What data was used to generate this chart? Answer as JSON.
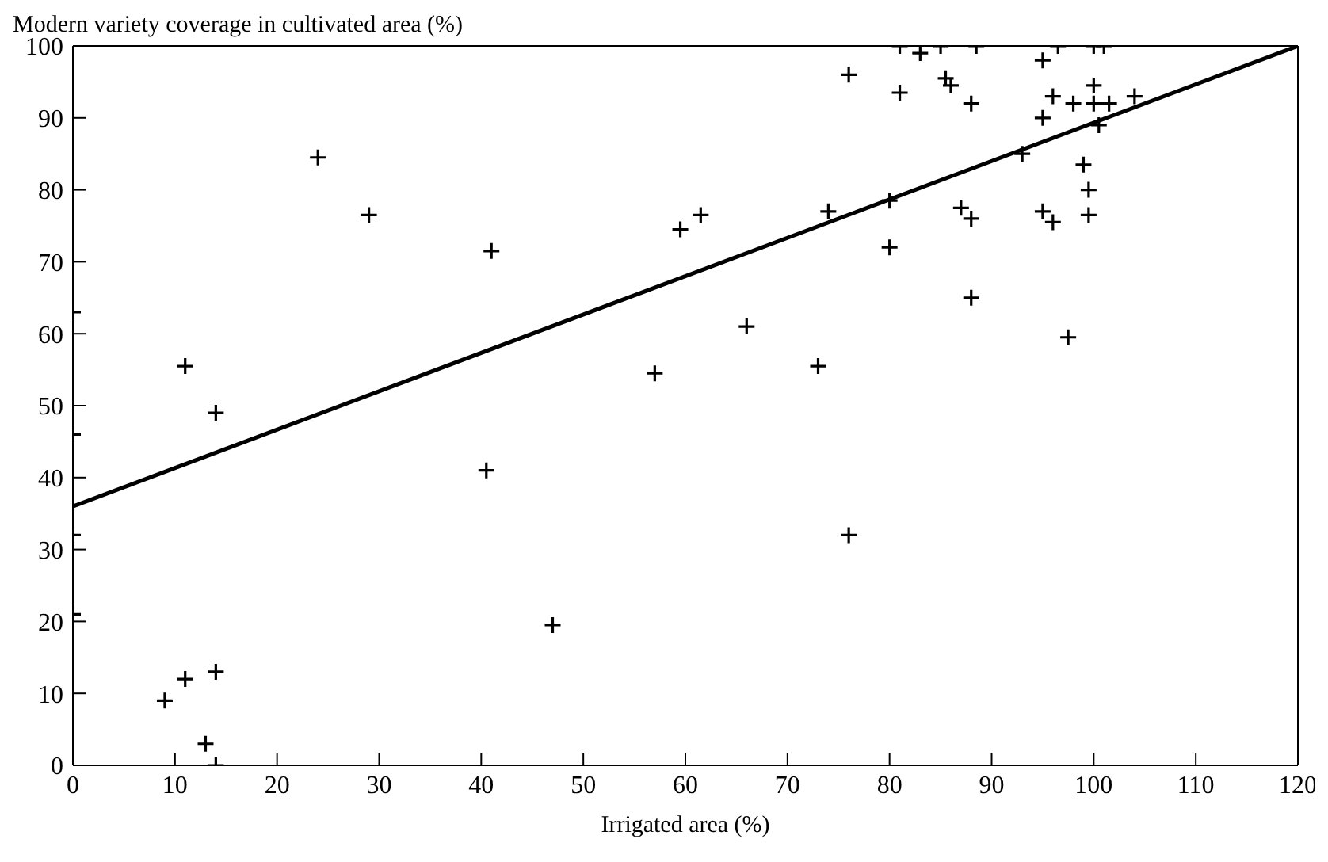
{
  "chart_data": {
    "type": "scatter",
    "ylabel": "Modern variety coverage in cultivated area (%)",
    "xlabel": "Irrigated area (%)",
    "xlim": [
      0,
      120
    ],
    "xticks": [
      0,
      10,
      20,
      30,
      40,
      50,
      60,
      70,
      80,
      90,
      100,
      110,
      120
    ],
    "ylim": [
      0,
      100
    ],
    "yticks": [
      0,
      10,
      20,
      30,
      40,
      50,
      60,
      70,
      80,
      90,
      100
    ],
    "grid": false,
    "legend": false,
    "series": [
      {
        "color": "#000000",
        "marker": "cross",
        "x": [
          0,
          0,
          0,
          0,
          9,
          11,
          13,
          14,
          14,
          11,
          14,
          24,
          29,
          41,
          40.5,
          47,
          57,
          59.5,
          61.5,
          66,
          73,
          74,
          76,
          76,
          80,
          80,
          81,
          81,
          83,
          85,
          85.5,
          86,
          87,
          88,
          88,
          88,
          88.5,
          93,
          95,
          95,
          95,
          96,
          96,
          96.5,
          97.5,
          98,
          99,
          99.5,
          99.5,
          100,
          100,
          100,
          100.5,
          101,
          101.5,
          104
        ],
        "values": [
          63,
          46,
          32,
          21,
          9,
          12,
          3,
          13,
          0,
          55.5,
          49,
          84.5,
          76.5,
          71.5,
          41,
          19.5,
          54.5,
          74.5,
          76.5,
          61,
          55.5,
          77,
          96,
          32,
          78.5,
          72,
          100,
          93.5,
          99,
          100,
          95.5,
          94.5,
          77.5,
          76,
          92,
          65,
          100,
          85,
          90,
          77,
          98,
          75.5,
          93,
          100,
          59.5,
          92,
          83.5,
          80,
          76.5,
          100,
          94.5,
          92,
          89,
          100,
          92,
          93
        ]
      },
      {
        "type": "line",
        "color": "#000000",
        "x": [
          0,
          120
        ],
        "values": [
          36,
          100
        ]
      }
    ]
  }
}
